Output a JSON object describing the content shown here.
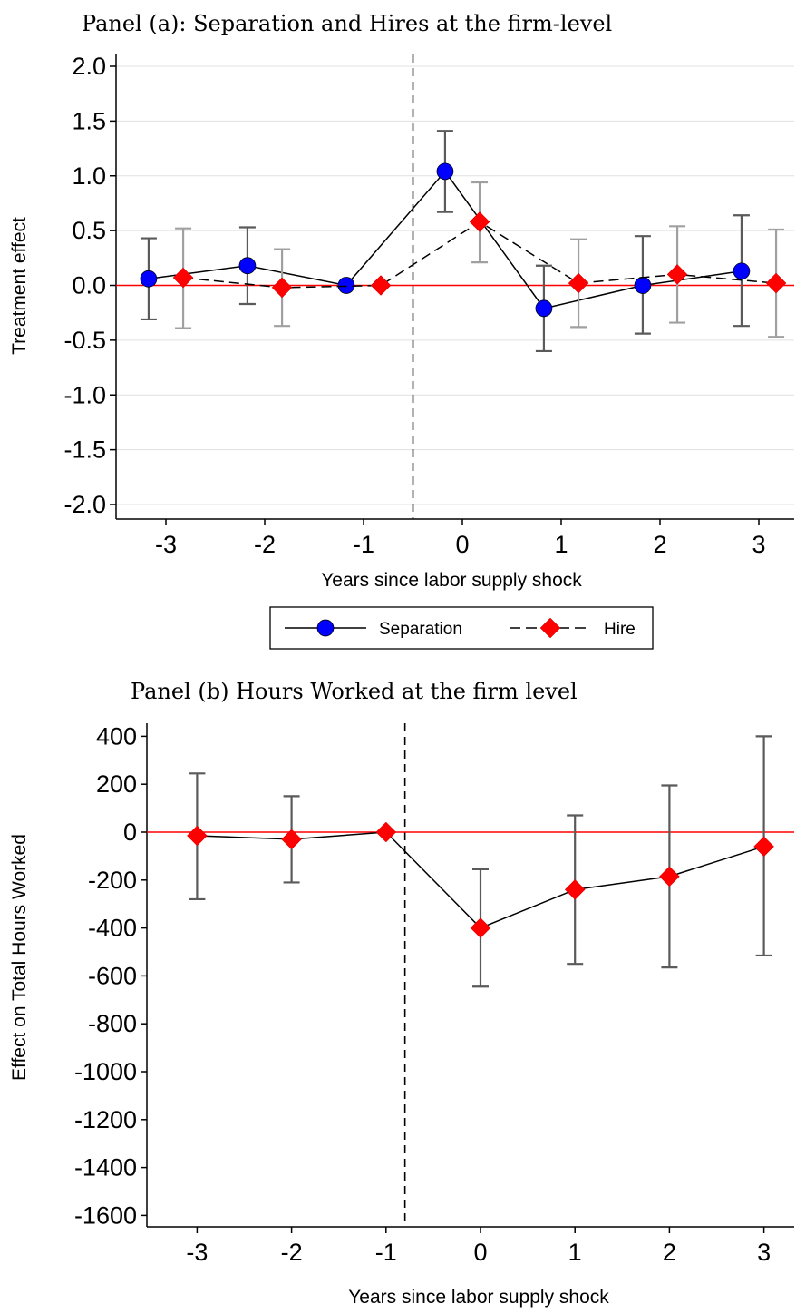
{
  "chart_data": [
    {
      "type": "line",
      "title": "Panel (a): Separation and Hires at the firm-level",
      "xlabel": "Years since labor supply shock",
      "ylabel": "Treatment effect",
      "x_ticks": [
        -3,
        -2,
        -1,
        0,
        1,
        2,
        3
      ],
      "y_ticks": [
        "2.0",
        "1.5",
        "1.0",
        "0.5",
        "0.0",
        "-0.5",
        "-1.0",
        "-1.5",
        "-2.0"
      ],
      "ylim": [
        -2.0,
        2.0
      ],
      "reference_line_y": 0,
      "vertical_line_x": -0.5,
      "grid": true,
      "legend_position": "bottom",
      "series": [
        {
          "name": "Separation",
          "marker": "circle",
          "color": "#0000ff",
          "line_style": "solid",
          "ci_color": "#5a5a5a",
          "x": [
            -3,
            -2,
            -1,
            0,
            1,
            2,
            3
          ],
          "values": [
            0.06,
            0.18,
            0.0,
            1.04,
            -0.21,
            0.0,
            0.13
          ],
          "ci_low": [
            -0.31,
            -0.17,
            0.0,
            0.67,
            -0.6,
            -0.44,
            -0.37
          ],
          "ci_high": [
            0.43,
            0.53,
            0.0,
            1.41,
            0.18,
            0.45,
            0.64
          ]
        },
        {
          "name": "Hire",
          "marker": "diamond",
          "color": "#ff0000",
          "line_style": "dashed",
          "ci_color": "#a0a0a0",
          "x": [
            -3,
            -2,
            -1,
            0,
            1,
            2,
            3
          ],
          "values": [
            0.07,
            -0.02,
            0.0,
            0.58,
            0.02,
            0.1,
            0.02
          ],
          "ci_low": [
            -0.39,
            -0.37,
            0.0,
            0.21,
            -0.38,
            -0.34,
            -0.47
          ],
          "ci_high": [
            0.52,
            0.33,
            0.0,
            0.94,
            0.42,
            0.54,
            0.51
          ]
        }
      ]
    },
    {
      "type": "line",
      "title": "Panel (b) Hours Worked at the firm level",
      "xlabel": "Years since labor supply shock",
      "ylabel": "Effect on Total Hours Worked",
      "x_ticks": [
        -3,
        -2,
        -1,
        0,
        1,
        2,
        3
      ],
      "y_ticks": [
        "400",
        "200",
        "0",
        "-200",
        "-400",
        "-600",
        "-800",
        "-1000",
        "-1200",
        "-1400",
        "-1600"
      ],
      "ylim": [
        -1650,
        450
      ],
      "reference_line_y": 0,
      "vertical_line_x": -0.8,
      "grid": false,
      "series": [
        {
          "marker": "diamond",
          "color": "#ff0000",
          "line_style": "solid",
          "ci_color": "#5a5a5a",
          "x": [
            -3,
            -2,
            -1,
            0,
            1,
            2,
            3
          ],
          "values": [
            -15,
            -30,
            0,
            -400,
            -240,
            -185,
            -60
          ],
          "ci_low": [
            -280,
            -210,
            0,
            -645,
            -550,
            -565,
            -515
          ],
          "ci_high": [
            245,
            150,
            0,
            -155,
            70,
            195,
            400
          ]
        }
      ]
    }
  ],
  "colors": {
    "reference_line": "#ff0000",
    "grid": "#e0e0e0",
    "axis": "#000000"
  }
}
